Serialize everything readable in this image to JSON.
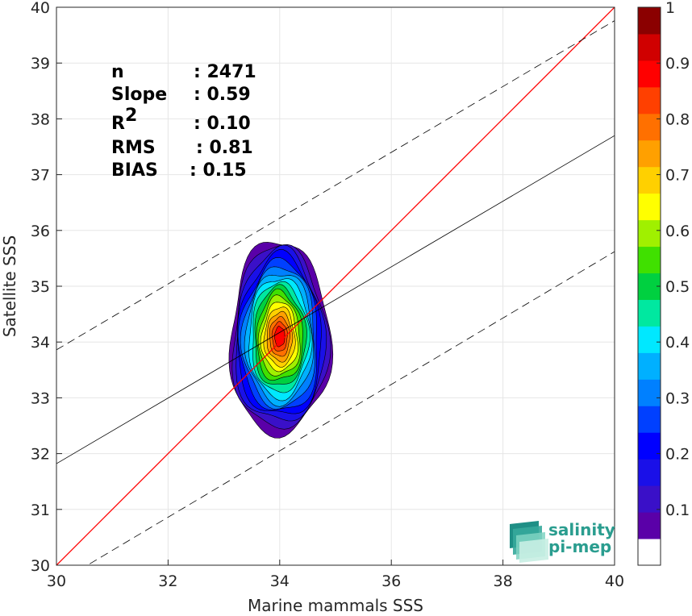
{
  "chart_data": {
    "type": "scatter",
    "subtype": "density contour",
    "xlabel": "Marine mammals SSS",
    "ylabel": "Satellite SSS",
    "xlim": [
      30,
      40
    ],
    "ylim": [
      30,
      40
    ],
    "xticks": [
      "30",
      "32",
      "34",
      "36",
      "38",
      "40"
    ],
    "yticks": [
      "30",
      "31",
      "32",
      "33",
      "34",
      "35",
      "36",
      "37",
      "38",
      "39",
      "40"
    ],
    "grid": true,
    "stats": [
      {
        "key": "n",
        "value": ": 2471"
      },
      {
        "key": "Slope",
        "value": ": 0.59"
      },
      {
        "key": "R",
        "sup": "2",
        "value": ": 0.10"
      },
      {
        "key": "RMS",
        "value": ": 0.81"
      },
      {
        "key": "BIAS",
        "value": ": 0.15"
      }
    ],
    "lines": [
      {
        "name": "1:1",
        "color": "#ff0000",
        "style": "solid",
        "points": [
          [
            30,
            30
          ],
          [
            40,
            40
          ]
        ]
      },
      {
        "name": "fit",
        "color": "#000000",
        "style": "solid",
        "points": [
          [
            30,
            31.82
          ],
          [
            40,
            37.7
          ]
        ]
      },
      {
        "name": "upper",
        "color": "#000000",
        "style": "dashed",
        "points": [
          [
            30,
            33.86
          ],
          [
            40,
            39.76
          ]
        ]
      },
      {
        "name": "lower",
        "color": "#000000",
        "style": "dashed",
        "points": [
          [
            30,
            29.67
          ],
          [
            40,
            35.62
          ]
        ]
      }
    ],
    "density_contours": {
      "center": [
        34.0,
        34.1
      ],
      "levels": [
        0.05,
        0.1,
        0.15,
        0.2,
        0.25,
        0.3,
        0.35,
        0.4,
        0.45,
        0.5,
        0.55,
        0.6,
        0.65,
        0.7,
        0.75,
        0.8,
        0.85,
        0.9
      ]
    },
    "colorbar": {
      "ticks": [
        "0.1",
        "0.2",
        "0.3",
        "0.4",
        "0.5",
        "0.6",
        "0.7",
        "0.8",
        "0.9",
        "1"
      ],
      "colors": [
        "#ffffff",
        "#5a00a8",
        "#3a10c8",
        "#1a10e8",
        "#0000ff",
        "#0040ff",
        "#0080ff",
        "#00b0ff",
        "#00e8ff",
        "#00e8a0",
        "#00d040",
        "#40e000",
        "#a0f000",
        "#ffff00",
        "#ffd000",
        "#ffa000",
        "#ff7000",
        "#ff4000",
        "#ff0000",
        "#d00000",
        "#8b0000"
      ]
    }
  },
  "logo": {
    "line1": "salinity",
    "line2": "pi-mep"
  }
}
